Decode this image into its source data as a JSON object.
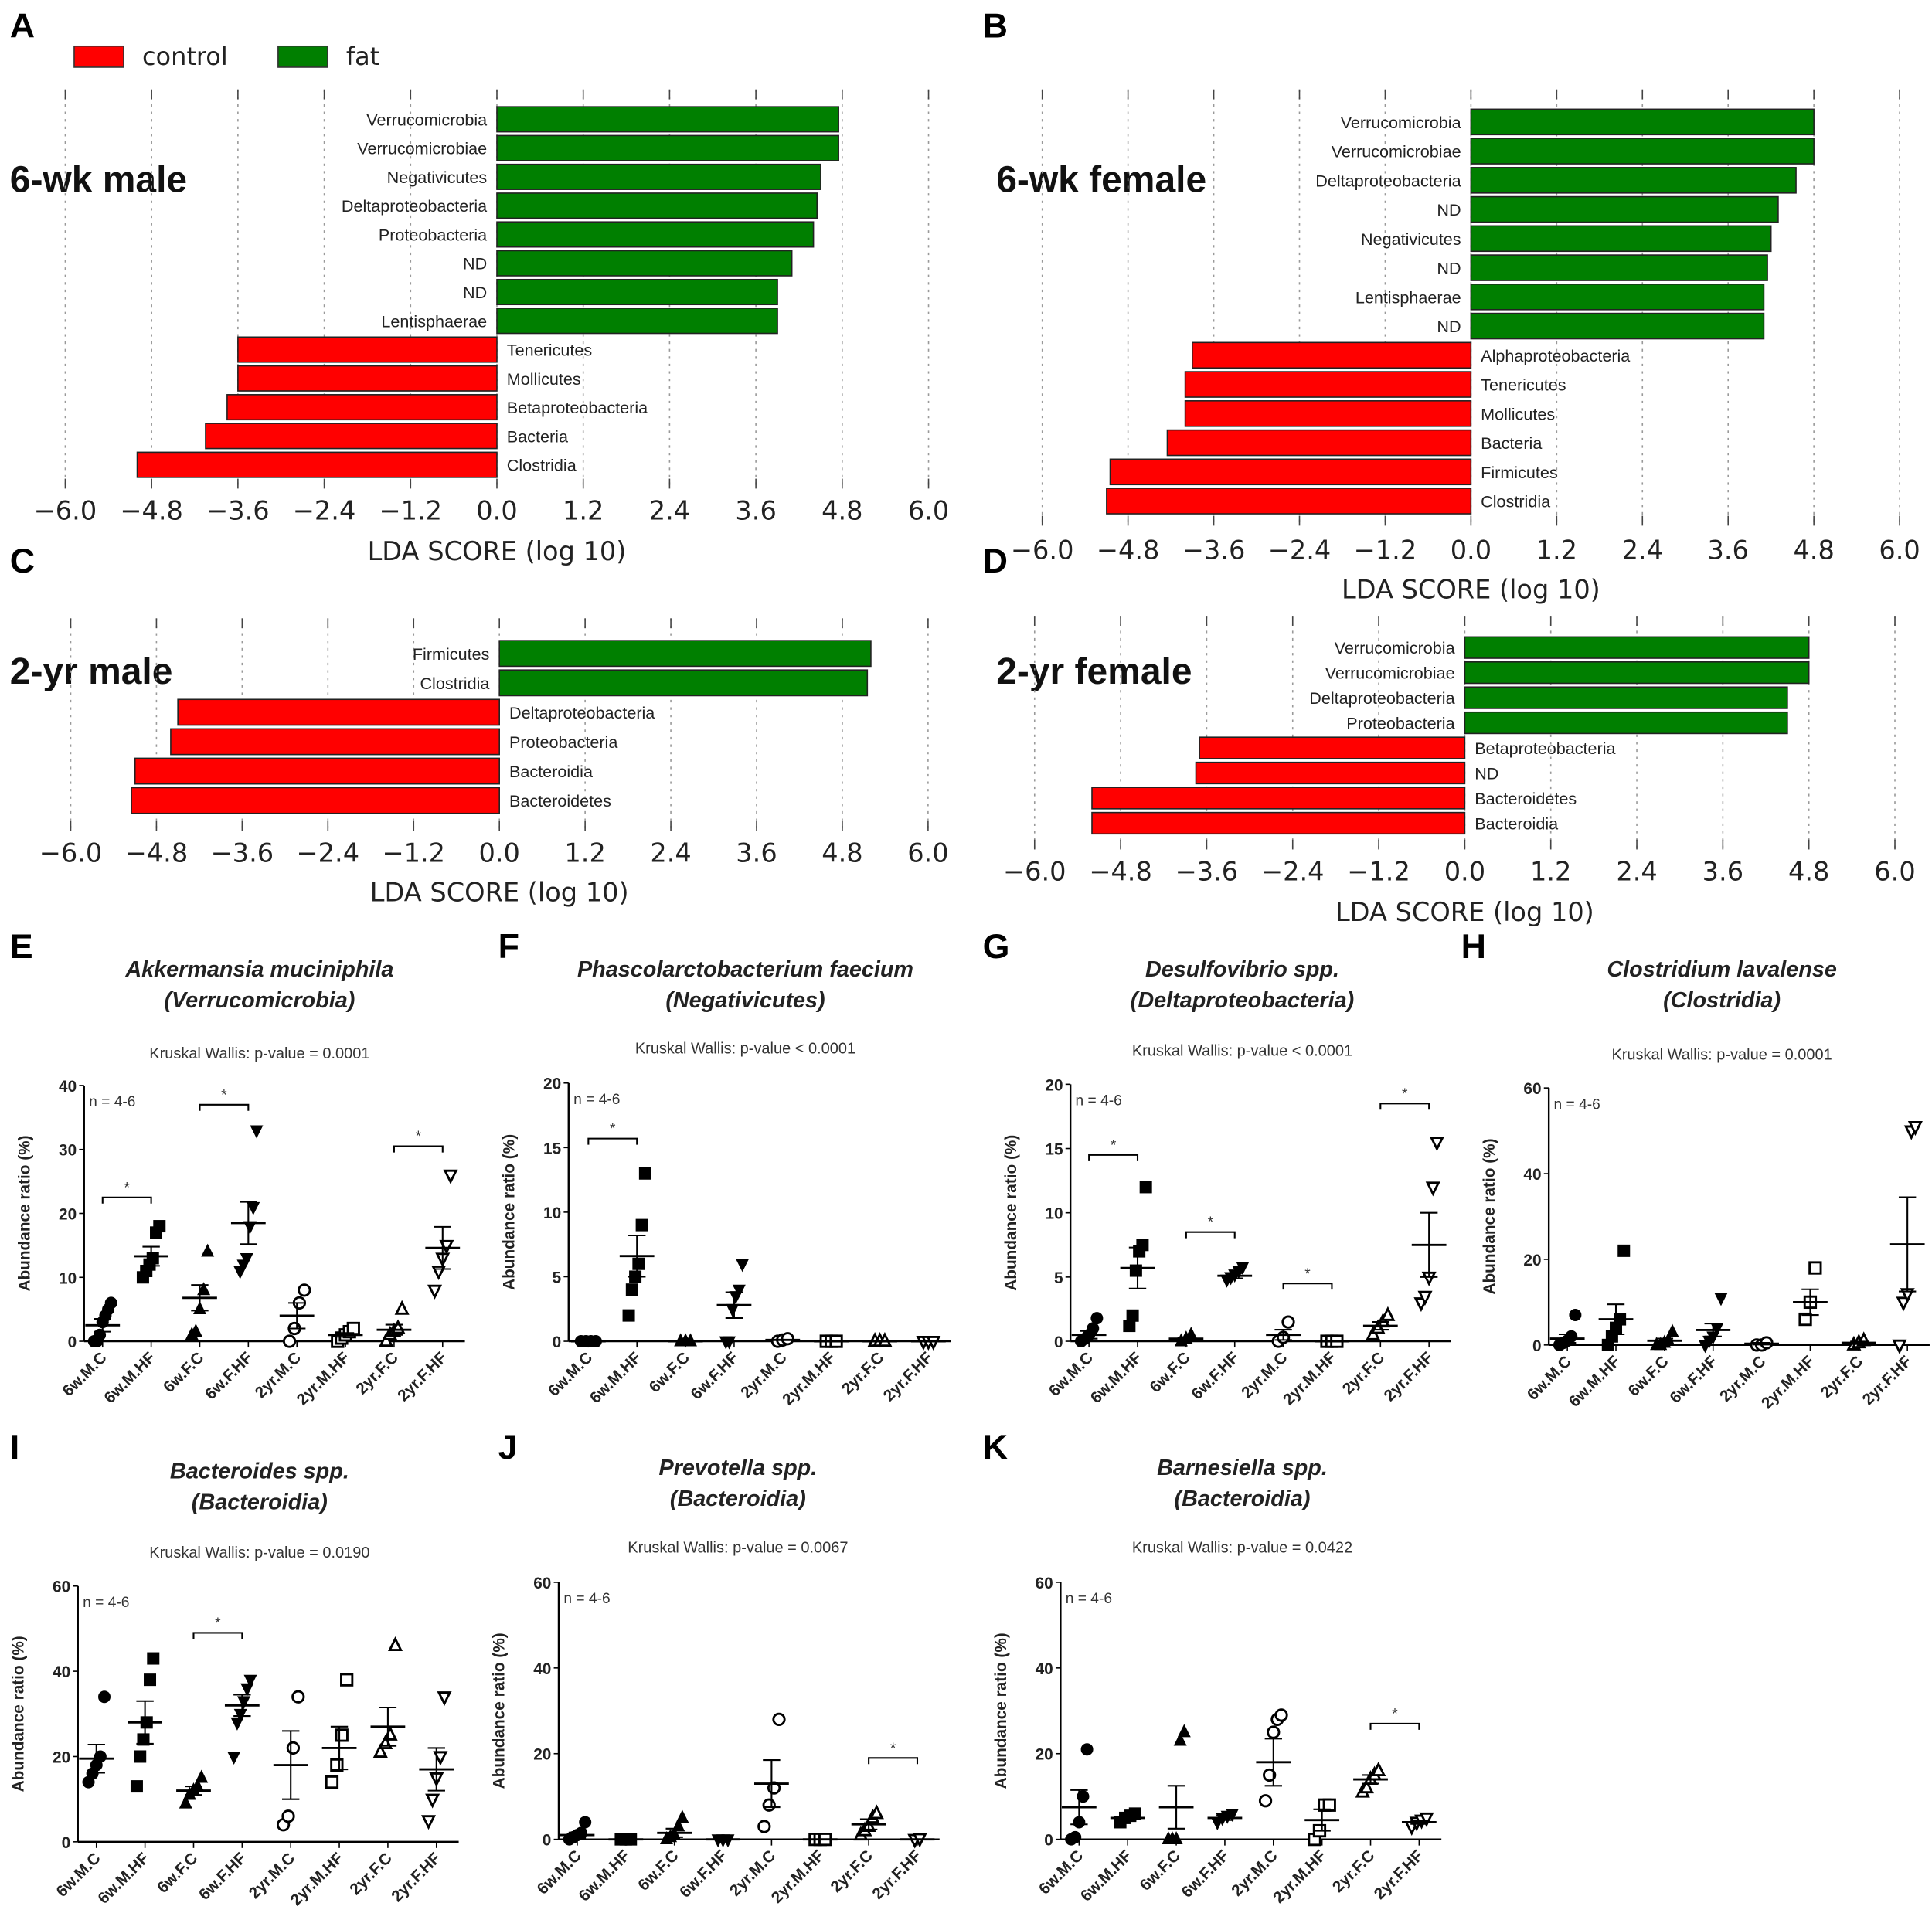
{
  "legend": {
    "control_label": "control",
    "fat_label": "fat",
    "control_color": "#ff0000",
    "fat_color": "#007f00"
  },
  "chart_data": [
    {
      "panel": "A",
      "type": "bar",
      "orientation": "horizontal",
      "group_title": "6-wk male",
      "xlabel": "LDA SCORE (log 10)",
      "xlim": [
        -6,
        6
      ],
      "ticks": [
        "−6.0",
        "−4.8",
        "−3.6",
        "−2.4",
        "−1.2",
        "0.0",
        "1.2",
        "2.4",
        "3.6",
        "4.8",
        "6.0"
      ],
      "categories": [
        "Verrucomicrobia",
        "Verrucomicrobiae",
        "Negativicutes",
        "Deltaproteobacteria",
        "Proteobacteria",
        "ND",
        "ND",
        "Lentisphaerae",
        "Tenericutes",
        "Mollicutes",
        "Betaproteobacteria",
        "Bacteria",
        "Clostridia"
      ],
      "values": [
        4.75,
        4.75,
        4.5,
        4.45,
        4.4,
        4.1,
        3.9,
        3.9,
        -3.6,
        -3.6,
        -3.75,
        -4.05,
        -5.0
      ]
    },
    {
      "panel": "B",
      "type": "bar",
      "orientation": "horizontal",
      "group_title": "6-wk female",
      "xlabel": "LDA SCORE (log 10)",
      "xlim": [
        -6,
        6
      ],
      "ticks": [
        "−6.0",
        "−4.8",
        "−3.6",
        "−2.4",
        "−1.2",
        "0.0",
        "1.2",
        "2.4",
        "3.6",
        "4.8",
        "6.0"
      ],
      "categories": [
        "Verrucomicrobia",
        "Verrucomicrobiae",
        "Deltaproteobacteria",
        "ND",
        "Negativicutes",
        "ND",
        "Lentisphaerae",
        "ND",
        "Alphaproteobacteria",
        "Tenericutes",
        "Mollicutes",
        "Bacteria",
        "Firmicutes",
        "Clostridia"
      ],
      "values": [
        4.8,
        4.8,
        4.55,
        4.3,
        4.2,
        4.15,
        4.1,
        4.1,
        -3.9,
        -4.0,
        -4.0,
        -4.25,
        -5.05,
        -5.1
      ]
    },
    {
      "panel": "C",
      "type": "bar",
      "orientation": "horizontal",
      "group_title": "2-yr male",
      "xlabel": "LDA SCORE (log 10)",
      "xlim": [
        -6,
        6
      ],
      "ticks": [
        "−6.0",
        "−4.8",
        "−3.6",
        "−2.4",
        "−1.2",
        "0.0",
        "1.2",
        "2.4",
        "3.6",
        "4.8",
        "6.0"
      ],
      "categories": [
        "Firmicutes",
        "Clostridia",
        "Deltaproteobacteria",
        "Proteobacteria",
        "Bacteroidia",
        "Bacteroidetes"
      ],
      "values": [
        5.2,
        5.15,
        -4.5,
        -4.6,
        -5.1,
        -5.15
      ]
    },
    {
      "panel": "D",
      "type": "bar",
      "orientation": "horizontal",
      "group_title": "2-yr female",
      "xlabel": "LDA SCORE (log 10)",
      "xlim": [
        -6,
        6
      ],
      "ticks": [
        "−6.0",
        "−4.8",
        "−3.6",
        "−2.4",
        "−1.2",
        "0.0",
        "1.2",
        "2.4",
        "3.6",
        "4.8",
        "6.0"
      ],
      "categories": [
        "Verrucomicrobia",
        "Verrucomicrobiae",
        "Deltaproteobacteria",
        "Proteobacteria",
        "Betaproteobacteria",
        "ND",
        "Bacteroidetes",
        "Bacteroidia"
      ],
      "values": [
        4.8,
        4.8,
        4.5,
        4.5,
        -3.7,
        -3.75,
        -5.2,
        -5.2
      ]
    },
    {
      "panel": "E",
      "type": "scatter",
      "title": [
        "Akkermansia muciniphila",
        "(Verrucomicrobia)"
      ],
      "subtitle": "Kruskal Wallis: p-value = 0.0001",
      "note": "n = 4-6",
      "ylabel": "Abundance ratio (%)",
      "ylim": [
        0,
        40
      ],
      "yticks": [
        0,
        10,
        20,
        30,
        40
      ],
      "categories": [
        "6w.M.C",
        "6w.M.HF",
        "6w.F.C",
        "6w.F.HF",
        "2yr.M.C",
        "2yr.M.HF",
        "2yr.F.C",
        "2yr.F.HF"
      ],
      "groups": [
        {
          "points": [
            0,
            0,
            1,
            3,
            4,
            5,
            6
          ],
          "mean": 2.5,
          "sem": 1
        },
        {
          "points": [
            10,
            11,
            12,
            13,
            17,
            18
          ],
          "mean": 13.3,
          "sem": 1.5
        },
        {
          "points": [
            1,
            1.5,
            5,
            8,
            14
          ],
          "mean": 6.8,
          "sem": 2
        },
        {
          "points": [
            11,
            12,
            13,
            18,
            21,
            33
          ],
          "mean": 18.5,
          "sem": 3.3
        },
        {
          "points": [
            0,
            2,
            6,
            8
          ],
          "mean": 4,
          "sem": 2
        },
        {
          "points": [
            0,
            0.5,
            1,
            1.5,
            2
          ],
          "mean": 1,
          "sem": 0.3
        },
        {
          "points": [
            0,
            1,
            1.5,
            2,
            5
          ],
          "mean": 1.8,
          "sem": 0.8
        },
        {
          "points": [
            8,
            11,
            13,
            15,
            26
          ],
          "mean": 14.6,
          "sem": 3.3
        }
      ],
      "significance": [
        {
          "pair": [
            0,
            1
          ],
          "y": 22.5,
          "label": "*"
        },
        {
          "pair": [
            2,
            3
          ],
          "y": 37,
          "label": "*"
        },
        {
          "pair": [
            6,
            7
          ],
          "y": 30.5,
          "label": "*"
        }
      ]
    },
    {
      "panel": "F",
      "type": "scatter",
      "title": [
        "Phascolarctobacterium faecium",
        "(Negativicutes)"
      ],
      "subtitle": "Kruskal Wallis: p-value < 0.0001",
      "note": "n = 4-6",
      "ylabel": "Abundance ratio (%)",
      "ylim": [
        0,
        20
      ],
      "yticks": [
        0,
        5,
        10,
        15,
        20
      ],
      "categories": [
        "6w.M.C",
        "6w.M.HF",
        "6w.F.C",
        "6w.F.HF",
        "2yr.M.C",
        "2yr.M.HF",
        "2yr.F.C",
        "2yr.F.HF"
      ],
      "groups": [
        {
          "points": [
            0,
            0,
            0,
            0
          ],
          "mean": 0,
          "sem": 0
        },
        {
          "points": [
            2,
            4,
            5,
            6,
            9,
            13
          ],
          "mean": 6.6,
          "sem": 1.6
        },
        {
          "points": [
            0,
            0,
            0
          ],
          "mean": 0,
          "sem": 0
        },
        {
          "points": [
            0,
            0,
            2.5,
            3.5,
            4,
            6
          ],
          "mean": 2.8,
          "sem": 1
        },
        {
          "points": [
            0,
            0.1,
            0.2
          ],
          "mean": 0.1,
          "sem": 0
        },
        {
          "points": [
            0,
            0,
            0
          ],
          "mean": 0,
          "sem": 0
        },
        {
          "points": [
            0,
            0,
            0
          ],
          "mean": 0,
          "sem": 0
        },
        {
          "points": [
            0,
            0,
            0
          ],
          "mean": 0,
          "sem": 0
        }
      ],
      "significance": [
        {
          "pair": [
            0,
            1
          ],
          "y": 15.7,
          "label": "*"
        }
      ]
    },
    {
      "panel": "G",
      "type": "scatter",
      "title": [
        "Desulfovibrio spp.",
        "(Deltaproteobacteria)"
      ],
      "subtitle": "Kruskal Wallis: p-value < 0.0001",
      "note": "n = 4-6",
      "ylabel": "Abundance ratio (%)",
      "ylim": [
        0,
        20
      ],
      "yticks": [
        0,
        5,
        10,
        15,
        20
      ],
      "categories": [
        "6w.M.C",
        "6w.M.HF",
        "6w.F.C",
        "6w.F.HF",
        "2yr.M.C",
        "2yr.M.HF",
        "2yr.F.C",
        "2yr.F.HF"
      ],
      "groups": [
        {
          "points": [
            0,
            0.2,
            0.5,
            1,
            1.8
          ],
          "mean": 0.5,
          "sem": 0.3
        },
        {
          "points": [
            1.2,
            2,
            5.5,
            7,
            7.5,
            12
          ],
          "mean": 5.7,
          "sem": 1.6
        },
        {
          "points": [
            0,
            0.2,
            0.5
          ],
          "mean": 0.2,
          "sem": 0.1
        },
        {
          "points": [
            4.8,
            5,
            5.2,
            5.5,
            5.8
          ],
          "mean": 5.1,
          "sem": 0.2
        },
        {
          "points": [
            0,
            0.3,
            1.5
          ],
          "mean": 0.5,
          "sem": 0.4
        },
        {
          "points": [
            0,
            0,
            0
          ],
          "mean": 0,
          "sem": 0
        },
        {
          "points": [
            0.5,
            1,
            1.5,
            2
          ],
          "mean": 1.2,
          "sem": 0.3
        },
        {
          "points": [
            3,
            3.5,
            5,
            12,
            15.5
          ],
          "mean": 7.5,
          "sem": 2.5
        }
      ],
      "significance": [
        {
          "pair": [
            0,
            1
          ],
          "y": 14.5,
          "label": "*"
        },
        {
          "pair": [
            2,
            3
          ],
          "y": 8.5,
          "label": "*"
        },
        {
          "pair": [
            4,
            5
          ],
          "y": 4.5,
          "label": "*"
        },
        {
          "pair": [
            6,
            7
          ],
          "y": 18.5,
          "label": "*"
        }
      ]
    },
    {
      "panel": "H",
      "type": "scatter",
      "title": [
        "Clostridium lavalense",
        "(Clostridia)"
      ],
      "subtitle": "Kruskal Wallis: p-value = 0.0001",
      "note": "n = 4-6",
      "ylabel": "Abundance ratio (%)",
      "ylim": [
        0,
        60
      ],
      "yticks": [
        0,
        20,
        40,
        60
      ],
      "categories": [
        "6w.M.C",
        "6w.M.HF",
        "6w.F.C",
        "6w.F.HF",
        "2yr.M.C",
        "2yr.M.HF",
        "2yr.F.C",
        "2yr.F.HF"
      ],
      "groups": [
        {
          "points": [
            0,
            0.5,
            1,
            2,
            7
          ],
          "mean": 1.5,
          "sem": 1
        },
        {
          "points": [
            0,
            2,
            4,
            6,
            22
          ],
          "mean": 6,
          "sem": 3.5
        },
        {
          "points": [
            0,
            0,
            0.5,
            1,
            3
          ],
          "mean": 1,
          "sem": 0.5
        },
        {
          "points": [
            0,
            1,
            2,
            4,
            11
          ],
          "mean": 3.5,
          "sem": 1.5
        },
        {
          "points": [
            0,
            0,
            0.5
          ],
          "mean": 0.3,
          "sem": 0.2
        },
        {
          "points": [
            6,
            10,
            18
          ],
          "mean": 10,
          "sem": 3
        },
        {
          "points": [
            0,
            0.5,
            1
          ],
          "mean": 0.5,
          "sem": 0.3
        },
        {
          "points": [
            0,
            10,
            12,
            50,
            51
          ],
          "mean": 23.5,
          "sem": 11
        }
      ],
      "significance": []
    },
    {
      "panel": "I",
      "type": "scatter",
      "title": [
        "Bacteroides spp.",
        "(Bacteroidia)"
      ],
      "subtitle": "Kruskal Wallis: p-value = 0.0190",
      "note": "n = 4-6",
      "ylabel": "Abundance ratio (%)",
      "ylim": [
        0,
        60
      ],
      "yticks": [
        0,
        20,
        40,
        60
      ],
      "categories": [
        "6w.M.C",
        "6w.M.HF",
        "6w.F.C",
        "6w.F.HF",
        "2yr.M.C",
        "2yr.M.HF",
        "2yr.F.C",
        "2yr.F.HF"
      ],
      "groups": [
        {
          "points": [
            14,
            16,
            18,
            20,
            34
          ],
          "mean": 19.5,
          "sem": 3.3
        },
        {
          "points": [
            13,
            20,
            24,
            28,
            38,
            43
          ],
          "mean": 28,
          "sem": 5
        },
        {
          "points": [
            9,
            11,
            12,
            13,
            15
          ],
          "mean": 12,
          "sem": 1
        },
        {
          "points": [
            20,
            28,
            30,
            33,
            36,
            38
          ],
          "mean": 32,
          "sem": 2.5
        },
        {
          "points": [
            4,
            6,
            22,
            34
          ],
          "mean": 18,
          "sem": 8
        },
        {
          "points": [
            14,
            18,
            25,
            38
          ],
          "mean": 22,
          "sem": 5
        },
        {
          "points": [
            21,
            23,
            25,
            46
          ],
          "mean": 27,
          "sem": 4.5
        },
        {
          "points": [
            5,
            10,
            15,
            20,
            34
          ],
          "mean": 17,
          "sem": 5
        }
      ],
      "significance": [
        {
          "pair": [
            2,
            3
          ],
          "y": 49,
          "label": "*"
        }
      ]
    },
    {
      "panel": "J",
      "type": "scatter",
      "title": [
        "Prevotella spp.",
        "(Bacteroidia)"
      ],
      "subtitle": "Kruskal Wallis: p-value = 0.0067",
      "note": "n = 4-6",
      "ylabel": "Abundance ratio (%)",
      "ylim": [
        0,
        60
      ],
      "yticks": [
        0,
        20,
        40,
        60
      ],
      "categories": [
        "6w.M.C",
        "6w.M.HF",
        "6w.F.C",
        "6w.F.HF",
        "2yr.M.C",
        "2yr.M.HF",
        "2yr.F.C",
        "2yr.F.HF"
      ],
      "groups": [
        {
          "points": [
            0,
            0.5,
            1,
            1.5,
            4
          ],
          "mean": 1,
          "sem": 0.6
        },
        {
          "points": [
            0,
            0,
            0
          ],
          "mean": 0,
          "sem": 0
        },
        {
          "points": [
            0,
            0.5,
            1,
            3,
            5
          ],
          "mean": 1.5,
          "sem": 1
        },
        {
          "points": [
            0,
            0,
            0
          ],
          "mean": 0,
          "sem": 0
        },
        {
          "points": [
            3,
            8,
            12,
            28
          ],
          "mean": 13,
          "sem": 5.5
        },
        {
          "points": [
            0,
            0,
            0
          ],
          "mean": 0,
          "sem": 0
        },
        {
          "points": [
            1,
            2,
            3,
            5,
            6
          ],
          "mean": 3.5,
          "sem": 1.2
        },
        {
          "points": [
            0,
            0.2
          ],
          "mean": 0,
          "sem": 0
        }
      ],
      "significance": [
        {
          "pair": [
            6,
            7
          ],
          "y": 19,
          "label": "*"
        }
      ]
    },
    {
      "panel": "K",
      "type": "scatter",
      "title": [
        "Barnesiella spp.",
        "(Bacteroidia)"
      ],
      "subtitle": "Kruskal Wallis: p-value = 0.0422",
      "note": "n = 4-6",
      "ylabel": "Abundance ratio (%)",
      "ylim": [
        0,
        60
      ],
      "yticks": [
        0,
        20,
        40,
        60
      ],
      "categories": [
        "6w.M.C",
        "6w.M.HF",
        "6w.F.C",
        "6w.F.HF",
        "2yr.M.C",
        "2yr.M.HF",
        "2yr.F.C",
        "2yr.F.HF"
      ],
      "groups": [
        {
          "points": [
            0,
            0.5,
            4,
            10,
            21
          ],
          "mean": 7.5,
          "sem": 4
        },
        {
          "points": [
            4,
            5,
            5.5,
            6
          ],
          "mean": 5,
          "sem": 0.5
        },
        {
          "points": [
            0,
            0,
            0,
            23,
            25
          ],
          "mean": 7.5,
          "sem": 5
        },
        {
          "points": [
            4,
            5,
            5.5,
            6
          ],
          "mean": 5,
          "sem": 0.5
        },
        {
          "points": [
            9,
            15,
            25,
            28,
            29
          ],
          "mean": 18,
          "sem": 5.5
        },
        {
          "points": [
            0,
            2,
            8,
            8
          ],
          "mean": 4.5,
          "sem": 2.5
        },
        {
          "points": [
            11,
            12,
            14,
            15,
            16
          ],
          "mean": 14,
          "sem": 1
        },
        {
          "points": [
            3,
            4,
            4.5,
            5
          ],
          "mean": 4,
          "sem": 0.4
        }
      ],
      "significance": [
        {
          "pair": [
            6,
            7
          ],
          "y": 27,
          "label": "*"
        }
      ]
    }
  ]
}
